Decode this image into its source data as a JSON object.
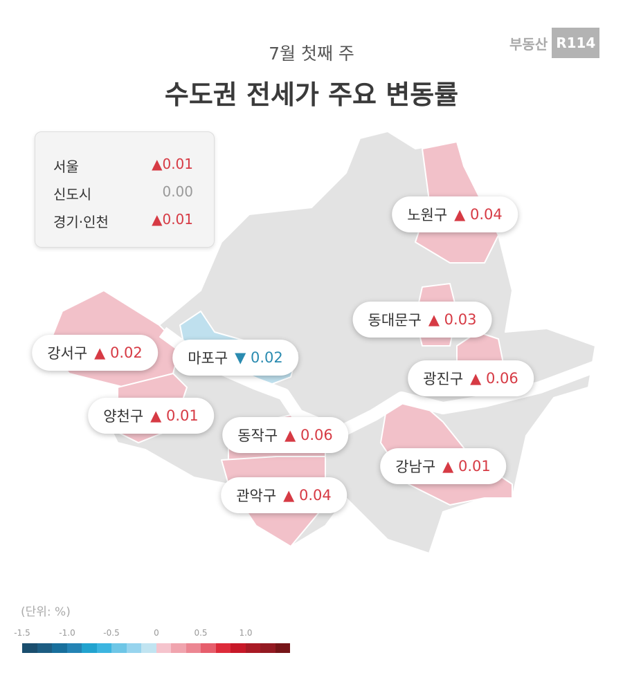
{
  "header": {
    "subtitle": "7월 첫째 주",
    "title": "수도권 전세가 주요 변동률",
    "logo_text": "부동산",
    "logo_box": "R114"
  },
  "summary": [
    {
      "region": "서울",
      "arrow": "▲",
      "value": "0.01",
      "dir": "up"
    },
    {
      "region": "신도시",
      "arrow": "",
      "value": "0.00",
      "dir": "zero"
    },
    {
      "region": "경기·인천",
      "arrow": "▲",
      "value": "0.01",
      "dir": "up"
    }
  ],
  "districts": [
    {
      "name": "노원구",
      "arrow": "▲",
      "value": "0.04",
      "dir": "up"
    },
    {
      "name": "동대문구",
      "arrow": "▲",
      "value": "0.03",
      "dir": "up"
    },
    {
      "name": "광진구",
      "arrow": "▲",
      "value": "0.06",
      "dir": "up"
    },
    {
      "name": "강서구",
      "arrow": "▲",
      "value": "0.02",
      "dir": "up"
    },
    {
      "name": "마포구",
      "arrow": "▼",
      "value": "0.02",
      "dir": "down"
    },
    {
      "name": "양천구",
      "arrow": "▲",
      "value": "0.01",
      "dir": "up"
    },
    {
      "name": "동작구",
      "arrow": "▲",
      "value": "0.06",
      "dir": "up"
    },
    {
      "name": "강남구",
      "arrow": "▲",
      "value": "0.01",
      "dir": "up"
    },
    {
      "name": "관악구",
      "arrow": "▲",
      "value": "0.04",
      "dir": "up"
    }
  ],
  "legend": {
    "unit": "(단위:  %)",
    "ticks": [
      "-1.5",
      "-1.0",
      "-0.5",
      "0",
      "0.5",
      "1.0"
    ],
    "colors": [
      "#1a4e6e",
      "#1d5d82",
      "#186f9c",
      "#2483b4",
      "#22a3cf",
      "#3cb5e0",
      "#6ec6e6",
      "#97d4ee",
      "#c1e4f1",
      "#f5c4cd",
      "#f0a4ae",
      "#ec8692",
      "#e65e6c",
      "#dd2b3a",
      "#c71828",
      "#a91a25",
      "#931a22",
      "#761518"
    ]
  },
  "colors": {
    "increase": "#f2c1c9",
    "decrease": "#bfe0ee",
    "neutral": "#e3e3e3",
    "up_text": "#d63a44",
    "down_text": "#2a8bb0"
  }
}
